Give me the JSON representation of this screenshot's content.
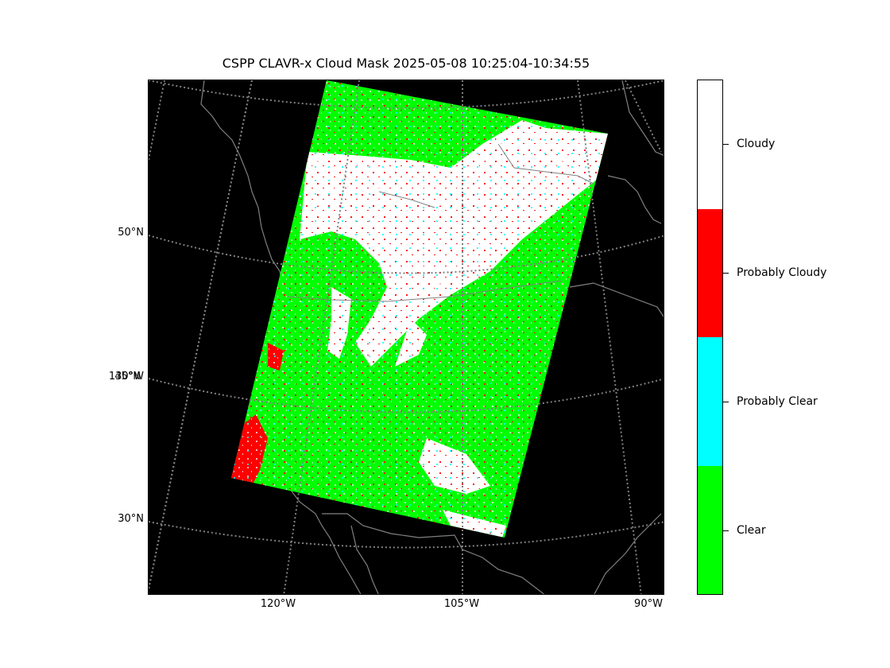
{
  "title": "CSPP CLAVR-x Cloud Mask 2025-05-08 10:25:04-10:34:55",
  "map": {
    "lat_labels": [
      "50°N",
      "130°W",
      "45°N",
      "30°N"
    ],
    "lon_labels": [
      "120°W",
      "105°W",
      "90°W"
    ],
    "background_color": "#000000",
    "graticule_color": "#808080",
    "coastline_color": "#808080"
  },
  "legend": {
    "categories": [
      {
        "label": "Cloudy",
        "color": "#ffffff"
      },
      {
        "label": "Probably Cloudy",
        "color": "#ff0000"
      },
      {
        "label": "Probably Clear",
        "color": "#00ffff"
      },
      {
        "label": "Clear",
        "color": "#00ff00"
      }
    ]
  }
}
